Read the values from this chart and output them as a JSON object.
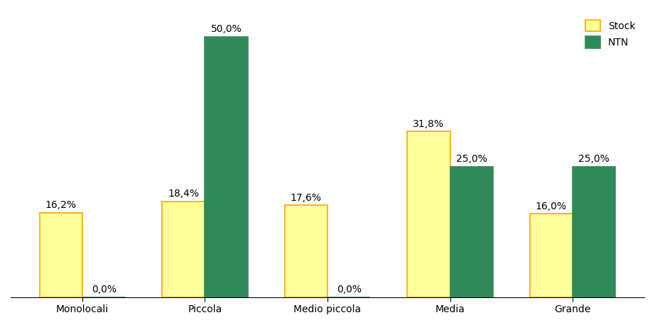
{
  "categories": [
    "Monolocali",
    "Piccola",
    "Medio piccola",
    "Media",
    "Grande"
  ],
  "stock_values": [
    16.2,
    18.4,
    17.6,
    31.8,
    16.0
  ],
  "ntn_values": [
    0.0,
    50.0,
    0.0,
    25.0,
    25.0
  ],
  "stock_labels": [
    "16,2%",
    "18,4%",
    "17,6%",
    "31,8%",
    "16,0%"
  ],
  "ntn_labels": [
    "0,0%",
    "50,0%",
    "0,0%",
    "25,0%",
    "25,0%"
  ],
  "stock_color": "#FFFF99",
  "stock_edge_color": "#FFA500",
  "ntn_color": "#2E8B57",
  "ntn_edge_color": "#2E8B57",
  "background_color": "#FFFFFF",
  "legend_stock_label": "Stock",
  "legend_ntn_label": "NTN",
  "ylim": [
    0,
    55
  ],
  "bar_width": 0.35,
  "title_fontsize": 11,
  "label_fontsize": 10,
  "tick_fontsize": 10,
  "legend_fontsize": 10
}
